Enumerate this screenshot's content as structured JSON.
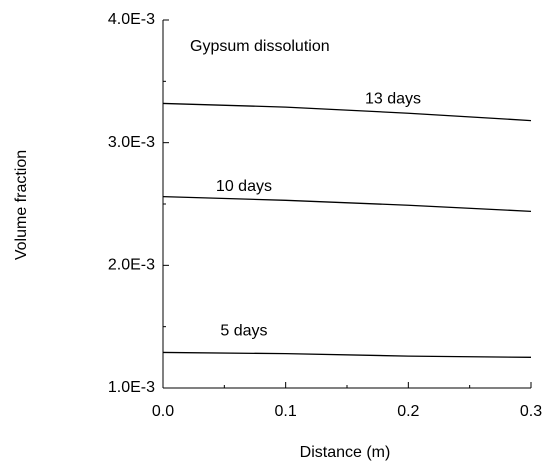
{
  "chart_data": {
    "type": "line",
    "annotation": "Gypsum dissolution",
    "xlabel": "Distance (m)",
    "ylabel": "Volume fraction",
    "x": [
      0,
      0.1,
      0.2,
      0.3
    ],
    "series": [
      {
        "name": "13 days",
        "color": "#000000",
        "values": [
          0.00332,
          0.00329,
          0.00324,
          0.00318
        ]
      },
      {
        "name": "10 days",
        "color": "#000000",
        "values": [
          0.00256,
          0.00253,
          0.00249,
          0.00244
        ]
      },
      {
        "name": "5 days",
        "color": "#000000",
        "values": [
          0.00129,
          0.00128,
          0.00126,
          0.00125
        ]
      }
    ],
    "xlim": [
      0,
      0.3
    ],
    "xticks": [
      {
        "value": 0,
        "label": "0.0"
      },
      0.1,
      0.2,
      0.3
    ],
    "xticks_minor": [
      0.05,
      0.15,
      0.25
    ],
    "ylim": [
      0.001,
      0.004
    ],
    "yticks": [
      {
        "value": 0.001,
        "label": "1.0E-3"
      },
      {
        "value": 0.002,
        "label": "2.0E-3"
      },
      {
        "value": 0.003,
        "label": "3.0E-3"
      },
      {
        "value": 0.004,
        "label": "4.0E-3"
      }
    ],
    "yticks_minor": [
      0.0015,
      0.0025,
      0.0035
    ],
    "grid": false
  }
}
